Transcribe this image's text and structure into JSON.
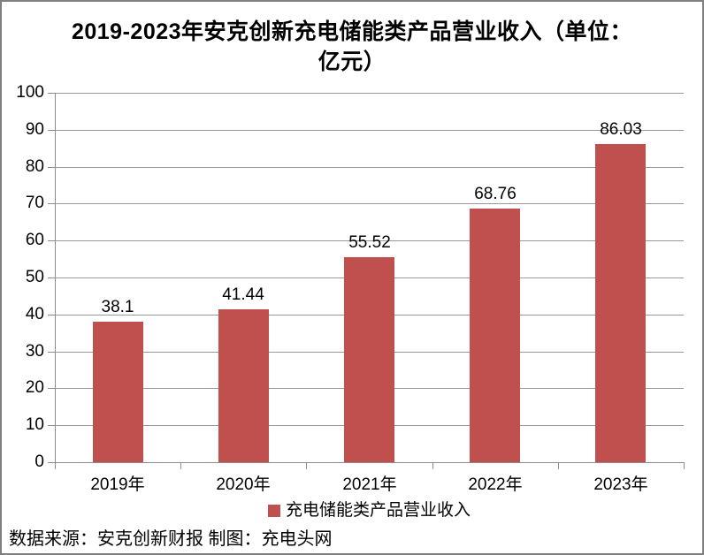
{
  "title": {
    "lines": [
      "2019-2023年安克创新充电储能类产品营业收入（单位：",
      "亿元）"
    ],
    "full": "2019-2023年安克创新充电储能类产品营业收入（单位：亿元）"
  },
  "chart_data": {
    "type": "bar",
    "title": "2019-2023年安克创新充电储能类产品营业收入（单位：亿元）",
    "categories": [
      "2019年",
      "2020年",
      "2021年",
      "2022年",
      "2023年"
    ],
    "series": [
      {
        "name": "充电储能类产品营业收入",
        "values": [
          38.1,
          41.44,
          55.52,
          68.76,
          86.03
        ]
      }
    ],
    "value_labels": [
      "38.1",
      "41.44",
      "55.52",
      "68.76",
      "86.03"
    ],
    "ylim": [
      0,
      100
    ],
    "yticks": [
      0,
      10,
      20,
      30,
      40,
      50,
      60,
      70,
      80,
      90,
      100
    ],
    "grid": true,
    "legend_position": "bottom",
    "bar_color": "#c0504d"
  },
  "legend": {
    "label": "充电储能类产品营业收入",
    "marker_color": "#c0504d"
  },
  "footer": {
    "text": "数据来源：安克创新财报 制图：充电头网"
  },
  "colors": {
    "bar": "#c0504d",
    "gridline": "#989898",
    "axis": "#8c8c8c",
    "frame_border": "#7f7f7f",
    "text": "#000000",
    "background": "#ffffff"
  }
}
